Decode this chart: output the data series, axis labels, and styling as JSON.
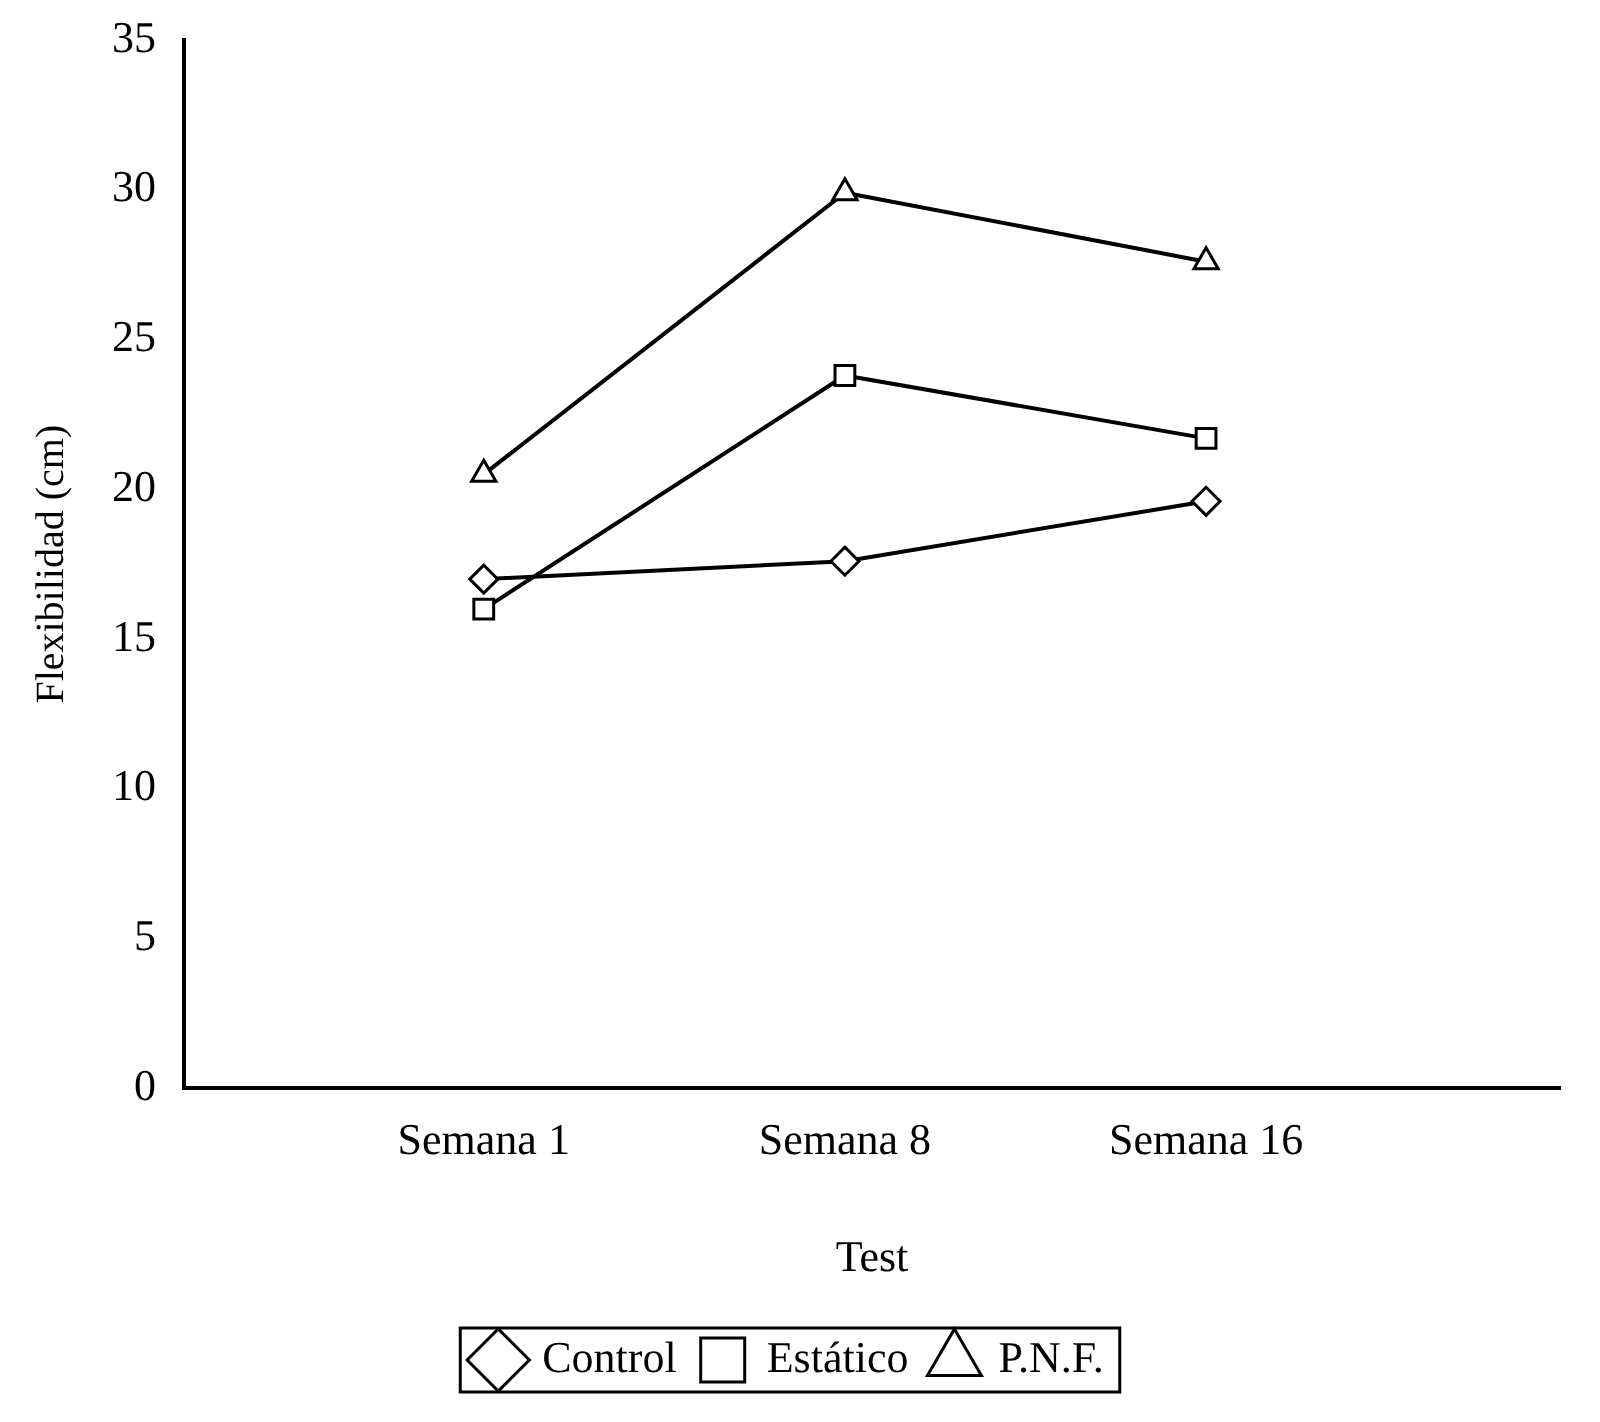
{
  "chart_data": {
    "type": "line",
    "xlabel": "Test",
    "ylabel": "Flexibilidad (cm)",
    "categories": [
      "Semana 1",
      "Semana 8",
      "Semana 16"
    ],
    "series": [
      {
        "name": "Control",
        "color": "#000000",
        "marker": "diamond",
        "values": [
          17.0,
          17.6,
          19.6
        ]
      },
      {
        "name": "Estático",
        "color": "#000000",
        "marker": "square",
        "values": [
          16.0,
          23.8,
          21.7
        ]
      },
      {
        "name": "P.N.F.",
        "color": "#000000",
        "marker": "triangle",
        "values": [
          20.5,
          29.9,
          27.6
        ]
      }
    ],
    "ylim": [
      0,
      35
    ],
    "yticks": [
      0,
      5,
      10,
      15,
      20,
      25,
      30,
      35
    ],
    "grid": false,
    "legend": "bottom",
    "line_style": "solid"
  }
}
